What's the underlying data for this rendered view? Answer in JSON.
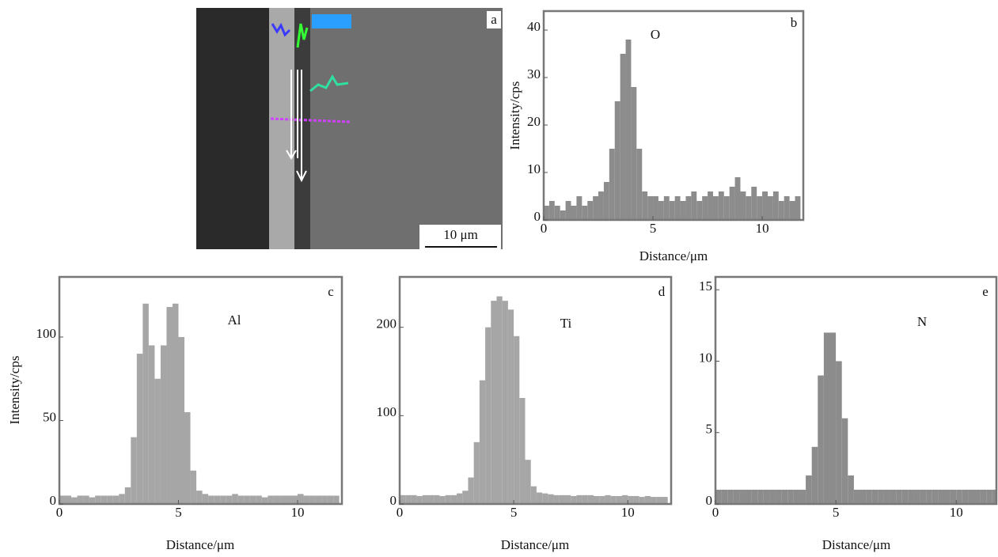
{
  "image": {
    "label": "a",
    "scale_bar": "10 μm"
  },
  "chart_data": [
    {
      "type": "histogram",
      "title": "O",
      "panel_label": "b",
      "x_label": "Distance/μm",
      "y_label": "Intensity/cps",
      "color": "#8c8c8c",
      "bins": [
        0,
        0.25,
        0.5,
        0.75,
        1,
        1.25,
        1.5,
        1.75,
        2,
        2.25,
        2.5,
        2.75,
        3,
        3.25,
        3.5,
        3.75,
        4,
        4.25,
        4.5,
        4.75,
        5,
        5.25,
        5.5,
        5.75,
        6,
        6.25,
        6.5,
        6.75,
        7,
        7.25,
        7.5,
        7.75,
        8,
        8.25,
        8.5,
        8.75,
        9,
        9.25,
        9.5,
        9.75,
        10,
        10.25,
        10.5,
        10.75,
        11,
        11.25,
        11.5,
        11.75
      ],
      "values": [
        3,
        4,
        3,
        2,
        4,
        3,
        5,
        3,
        4,
        5,
        6,
        8,
        15,
        25,
        35,
        38,
        28,
        15,
        6,
        5,
        5,
        4,
        5,
        4,
        5,
        4,
        5,
        6,
        4,
        5,
        6,
        5,
        6,
        5,
        7,
        9,
        6,
        5,
        7,
        5,
        6,
        5,
        6,
        4,
        5,
        4,
        5
      ],
      "xlim": [
        0,
        11.88
      ],
      "ylim": [
        0,
        44
      ],
      "xticks": [
        0,
        5,
        10
      ],
      "yticks": [
        0,
        10,
        20,
        30,
        40
      ]
    },
    {
      "type": "histogram",
      "title": "Al",
      "panel_label": "c",
      "x_label": "Distance/μm",
      "y_label": "Intensity/cps",
      "color": "#a6a6a6",
      "bins": [
        0,
        0.25,
        0.5,
        0.75,
        1,
        1.25,
        1.5,
        1.75,
        2,
        2.25,
        2.5,
        2.75,
        3,
        3.25,
        3.5,
        3.75,
        4,
        4.25,
        4.5,
        4.75,
        5,
        5.25,
        5.5,
        5.75,
        6,
        6.25,
        6.5,
        6.75,
        7,
        7.25,
        7.5,
        7.75,
        8,
        8.25,
        8.5,
        8.75,
        9,
        9.25,
        9.5,
        9.75,
        10,
        10.25,
        10.5,
        10.75,
        11,
        11.25,
        11.5,
        11.75
      ],
      "values": [
        5,
        5,
        4,
        5,
        5,
        4,
        5,
        5,
        5,
        5,
        6,
        10,
        40,
        90,
        120,
        95,
        75,
        95,
        118,
        120,
        100,
        55,
        20,
        8,
        6,
        5,
        5,
        5,
        5,
        6,
        5,
        5,
        5,
        5,
        4,
        5,
        5,
        5,
        5,
        5,
        6,
        5,
        5,
        5,
        5,
        5,
        5
      ],
      "xlim": [
        0,
        11.86
      ],
      "ylim": [
        0,
        136
      ],
      "xticks": [
        0,
        5,
        10
      ],
      "yticks": [
        0,
        50,
        100
      ]
    },
    {
      "type": "histogram",
      "title": "Ti",
      "panel_label": "d",
      "x_label": "Distance/μm",
      "color": "#a6a6a6",
      "bins": [
        0,
        0.25,
        0.5,
        0.75,
        1,
        1.25,
        1.5,
        1.75,
        2,
        2.25,
        2.5,
        2.75,
        3,
        3.25,
        3.5,
        3.75,
        4,
        4.25,
        4.5,
        4.75,
        5,
        5.25,
        5.5,
        5.75,
        6,
        6.25,
        6.5,
        6.75,
        7,
        7.25,
        7.5,
        7.75,
        8,
        8.25,
        8.5,
        8.75,
        9,
        9.25,
        9.5,
        9.75,
        10,
        10.25,
        10.5,
        10.75,
        11,
        11.25,
        11.5,
        11.75
      ],
      "values": [
        10,
        10,
        10,
        9,
        10,
        10,
        10,
        9,
        10,
        10,
        12,
        15,
        30,
        70,
        140,
        200,
        230,
        235,
        230,
        220,
        190,
        120,
        50,
        20,
        13,
        12,
        11,
        10,
        10,
        10,
        9,
        10,
        10,
        10,
        9,
        9,
        10,
        9,
        9,
        10,
        9,
        9,
        8,
        9,
        8,
        8,
        8
      ],
      "xlim": [
        0,
        11.9
      ],
      "ylim": [
        0,
        257
      ],
      "xticks": [
        0,
        5,
        10
      ],
      "yticks": [
        0,
        100,
        200
      ]
    },
    {
      "type": "histogram",
      "title": "N",
      "panel_label": "e",
      "x_label": "Distance/μm",
      "color": "#8c8c8c",
      "bins": [
        0,
        0.25,
        0.5,
        0.75,
        1,
        1.25,
        1.5,
        1.75,
        2,
        2.25,
        2.5,
        2.75,
        3,
        3.25,
        3.5,
        3.75,
        4,
        4.25,
        4.5,
        4.75,
        5,
        5.25,
        5.5,
        5.75,
        6,
        6.25,
        6.5,
        6.75,
        7,
        7.25,
        7.5,
        7.75,
        8,
        8.25,
        8.5,
        8.75,
        9,
        9.25,
        9.5,
        9.75,
        10,
        10.25,
        10.5,
        10.75,
        11,
        11.25,
        11.5,
        11.75
      ],
      "values": [
        1,
        1,
        1,
        1,
        1,
        1,
        1,
        1,
        1,
        1,
        1,
        1,
        1,
        1,
        1,
        2,
        4,
        9,
        12,
        12,
        10,
        6,
        2,
        1,
        1,
        1,
        1,
        1,
        1,
        1,
        1,
        1,
        1,
        1,
        1,
        1,
        1,
        1,
        1,
        1,
        1,
        1,
        1,
        1,
        1,
        1,
        1
      ],
      "xlim": [
        0,
        11.67
      ],
      "ylim": [
        0,
        15.9
      ],
      "xticks": [
        0,
        5,
        10
      ],
      "yticks": [
        0,
        5,
        10,
        15
      ]
    }
  ]
}
